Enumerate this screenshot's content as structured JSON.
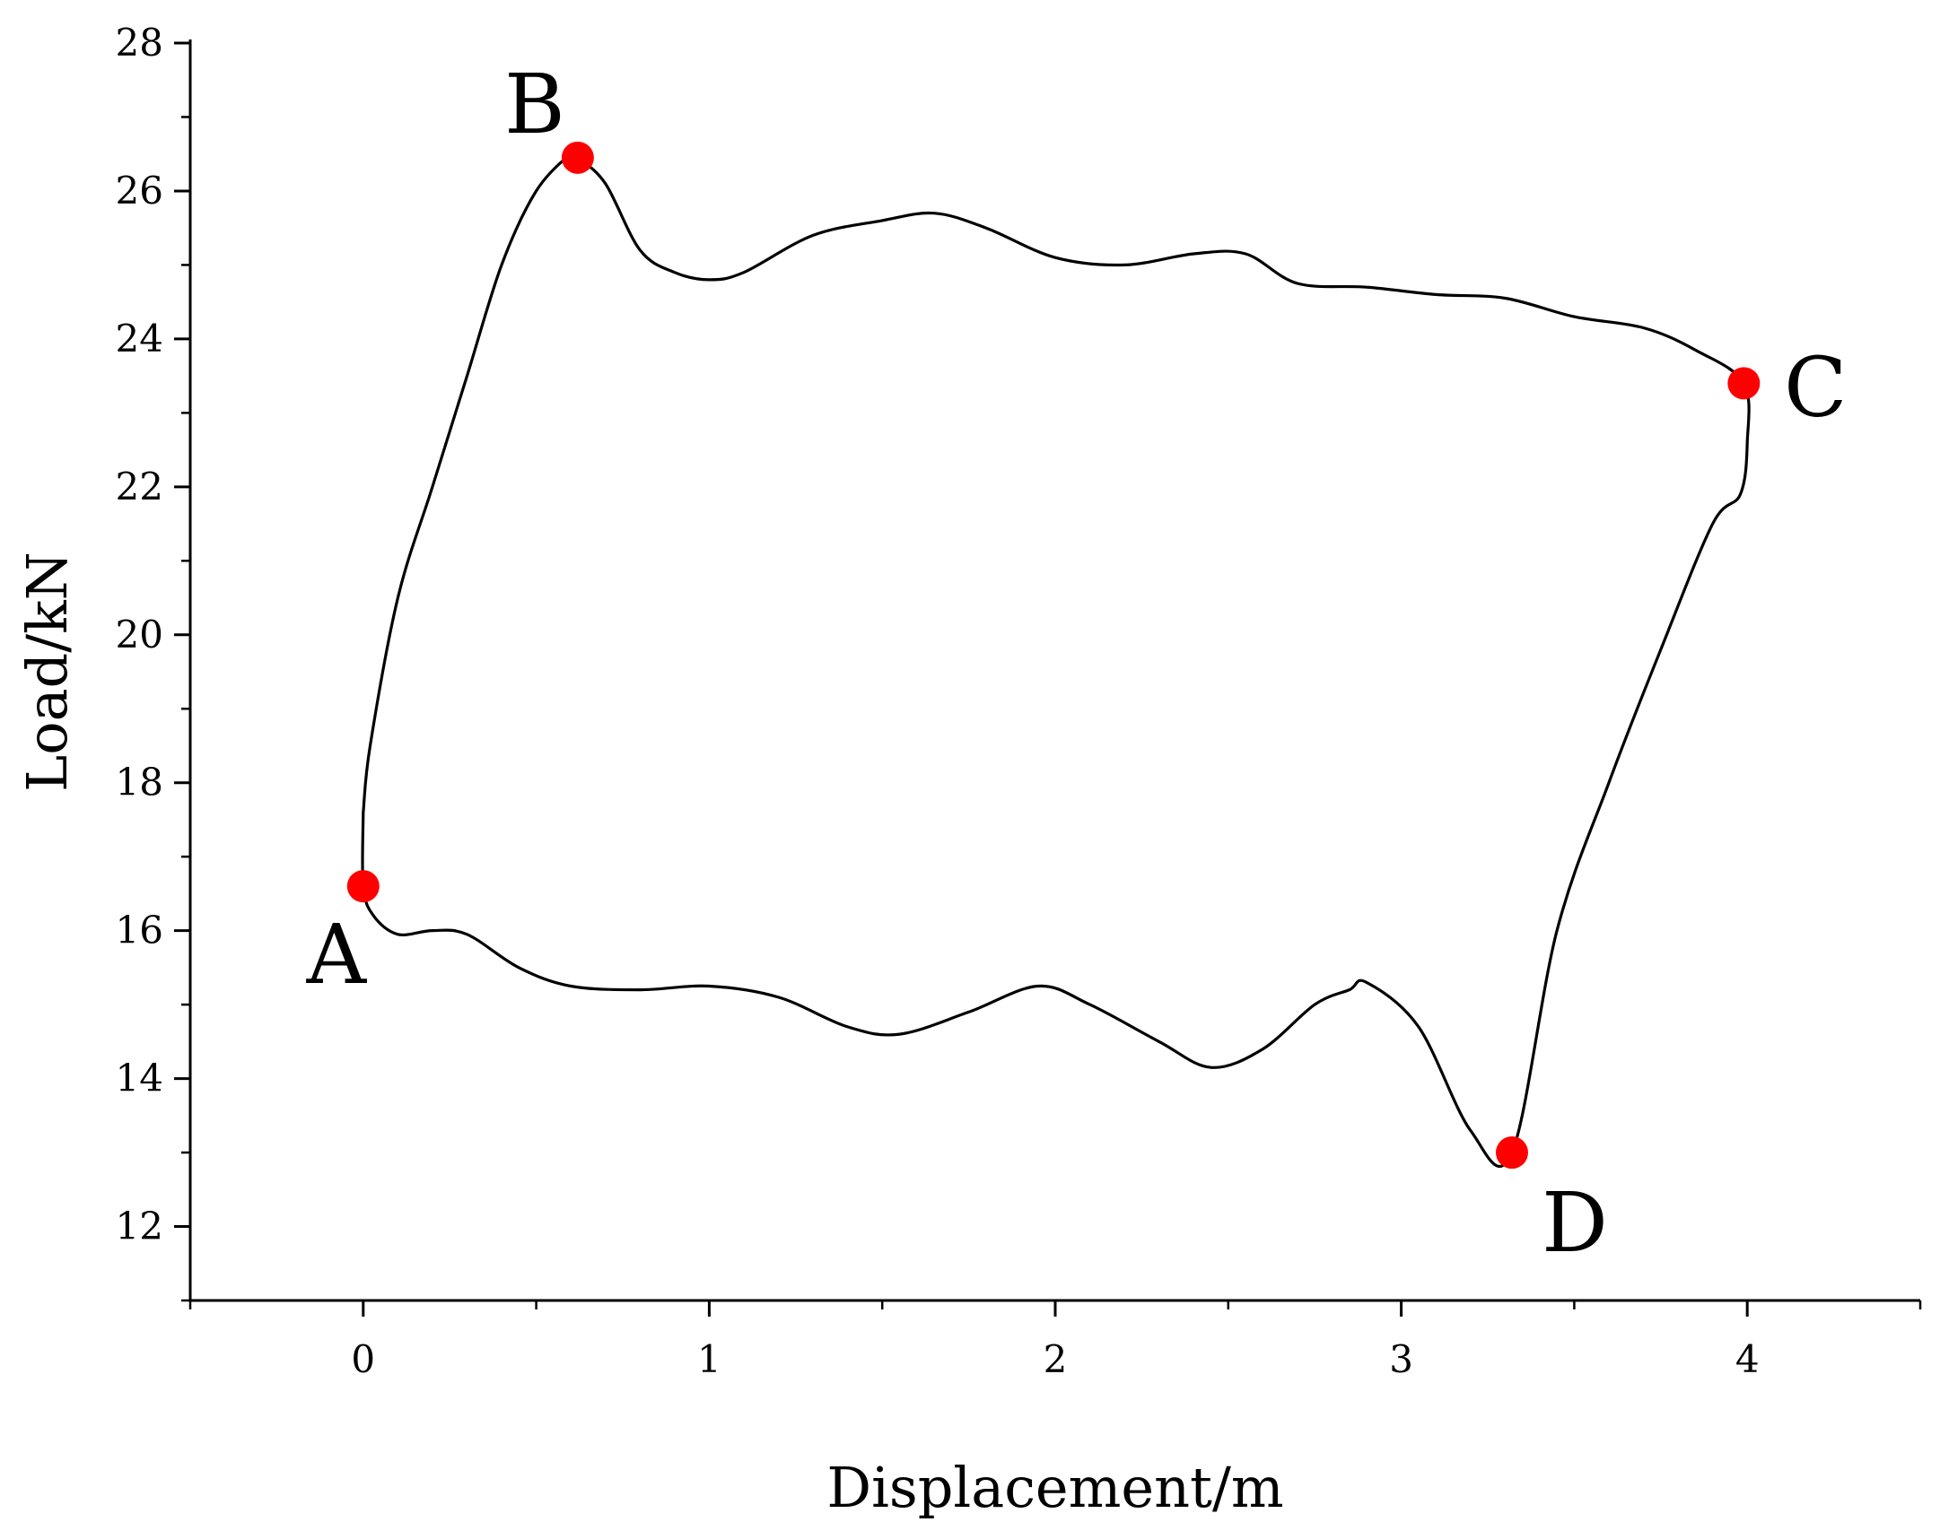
{
  "chart_data": {
    "type": "line",
    "title": "",
    "xlabel": "Displacement/m",
    "ylabel": "Load/kN",
    "xlim": [
      -0.5,
      4.5
    ],
    "ylim": [
      11,
      28
    ],
    "x_ticks": [
      0,
      1,
      2,
      3,
      4
    ],
    "y_ticks": [
      12,
      14,
      16,
      18,
      20,
      22,
      24,
      26,
      28
    ],
    "x_tick_labels": [
      "0",
      "1",
      "2",
      "3",
      "4"
    ],
    "y_tick_labels": [
      "12",
      "14",
      "16",
      "18",
      "20",
      "22",
      "24",
      "26",
      "28"
    ],
    "grid": false,
    "series": [
      {
        "color": "#000000",
        "x": [
          0.0,
          0.02,
          0.1,
          0.2,
          0.3,
          0.4,
          0.5,
          0.6,
          0.62,
          0.7,
          0.8,
          0.9,
          1.0,
          1.1,
          1.3,
          1.5,
          1.65,
          1.8,
          2.0,
          2.2,
          2.4,
          2.55,
          2.7,
          2.9,
          3.1,
          3.3,
          3.5,
          3.7,
          3.85,
          3.99,
          4.0,
          3.98,
          3.9,
          3.75,
          3.6,
          3.45,
          3.32,
          3.2,
          3.05,
          2.9,
          2.85,
          2.75,
          2.6,
          2.45,
          2.3,
          2.1,
          1.95,
          1.75,
          1.55,
          1.4,
          1.2,
          1.0,
          0.8,
          0.6,
          0.45,
          0.3,
          0.2,
          0.1,
          0.03,
          0.0,
          0.0
        ],
        "y": [
          17.6,
          18.5,
          20.5,
          22.0,
          23.5,
          25.0,
          26.0,
          26.5,
          26.45,
          26.1,
          25.2,
          24.9,
          24.8,
          24.9,
          25.4,
          25.6,
          25.7,
          25.5,
          25.1,
          25.0,
          25.15,
          25.15,
          24.75,
          24.7,
          24.6,
          24.55,
          24.3,
          24.15,
          23.85,
          23.4,
          22.6,
          21.9,
          21.5,
          19.8,
          18.0,
          16.0,
          13.0,
          13.3,
          14.7,
          15.3,
          15.2,
          15.0,
          14.4,
          14.15,
          14.5,
          15.0,
          15.25,
          14.9,
          14.6,
          14.7,
          15.1,
          15.25,
          15.2,
          15.25,
          15.5,
          15.95,
          16.0,
          15.95,
          16.2,
          16.6,
          17.6
        ]
      }
    ],
    "markers": [
      {
        "label": "A",
        "x": 0.0,
        "y": 16.6,
        "color": "#ff0000"
      },
      {
        "label": "B",
        "x": 0.62,
        "y": 26.45,
        "color": "#ff0000"
      },
      {
        "label": "C",
        "x": 3.99,
        "y": 23.4,
        "color": "#ff0000"
      },
      {
        "label": "D",
        "x": 3.32,
        "y": 13.0,
        "color": "#ff0000"
      }
    ]
  }
}
